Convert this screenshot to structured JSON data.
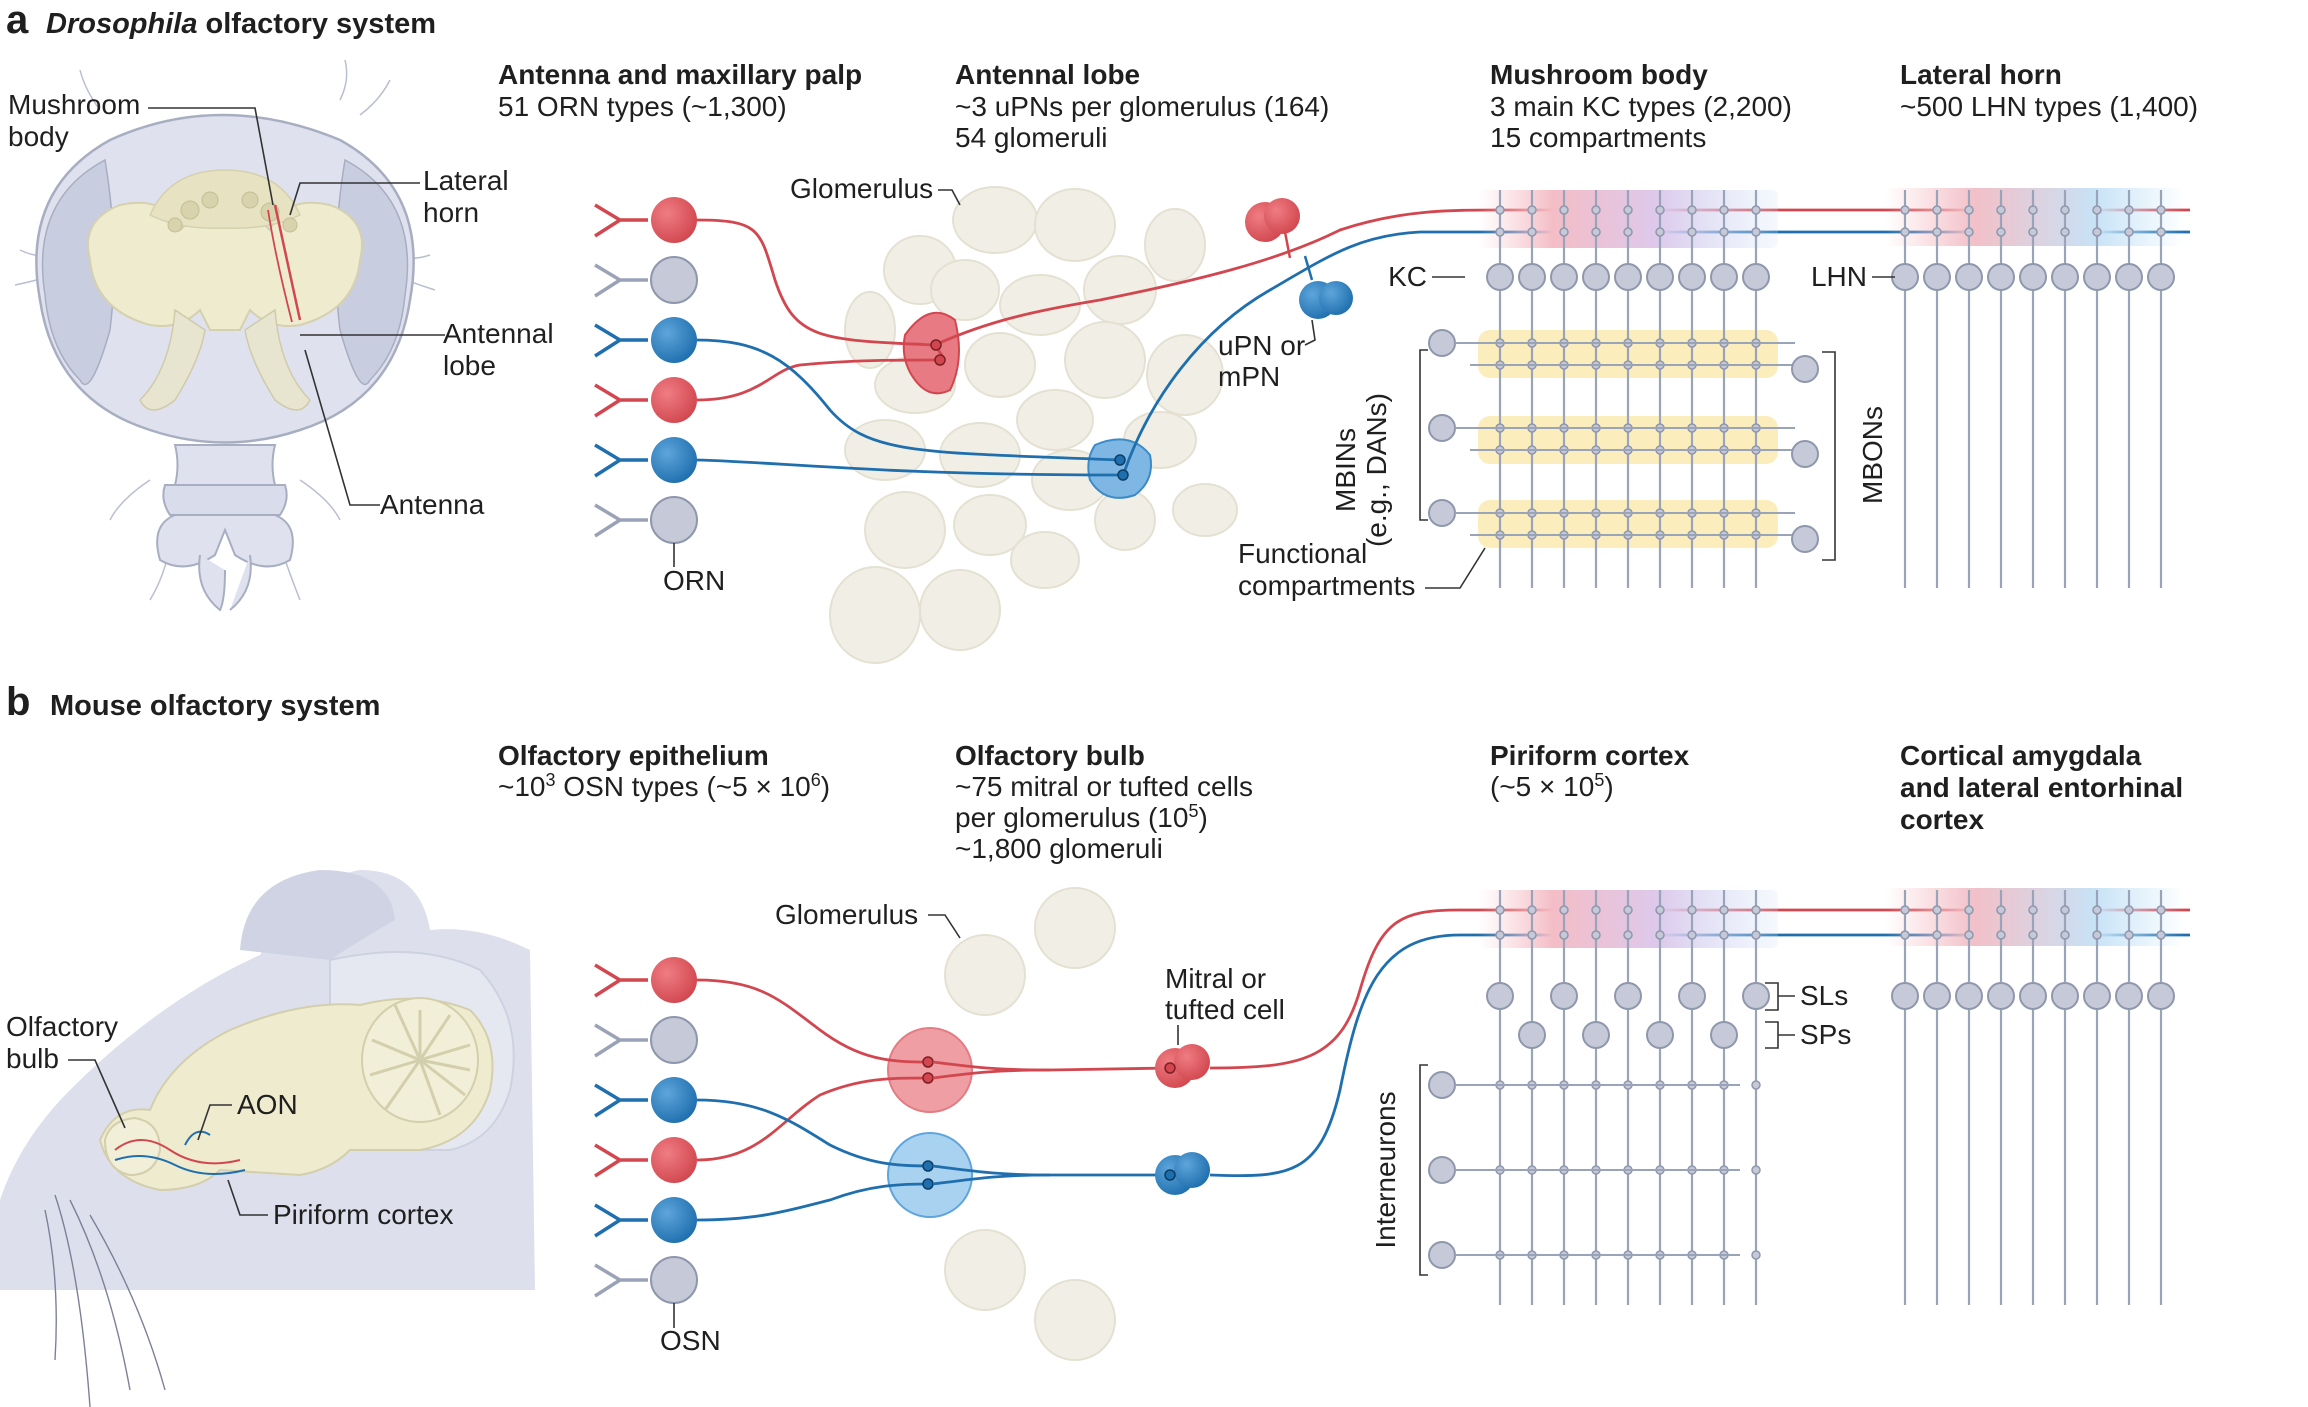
{
  "panel_a": {
    "letter": "a",
    "title_italic": "Drosophila",
    "title_rest": " olfactory system",
    "head_labels": {
      "mushroom_body_1": "Mushroom",
      "mushroom_body_2": "body",
      "lateral_horn_1": "Lateral",
      "lateral_horn_2": "horn",
      "antennal_lobe_1": "Antennal",
      "antennal_lobe_2": "lobe",
      "antenna": "Antenna"
    },
    "col1": {
      "header": "Antenna and maxillary palp",
      "line1": "51 ORN types (~1,300)"
    },
    "col2": {
      "header": "Antennal lobe",
      "line1": "~3 uPNs per glomerulus (164)",
      "line2": "54 glomeruli"
    },
    "col3": {
      "header": "Mushroom body",
      "line1": "3 main KC types (2,200)",
      "line2": "15 compartments"
    },
    "col4": {
      "header": "Lateral horn",
      "line1": "~500 LHN types (1,400)"
    },
    "labels": {
      "orn": "ORN",
      "glomerulus": "Glomerulus",
      "upn_1": "uPN or",
      "upn_2": "mPN",
      "kc": "KC",
      "lhn": "LHN",
      "mbins_1": "MBINs",
      "mbins_2": "(e.g., DANs)",
      "mbons": "MBONs",
      "functional_1": "Functional",
      "functional_2": "compartments"
    }
  },
  "panel_b": {
    "letter": "b",
    "title": "Mouse olfactory system",
    "head_labels": {
      "olfactory_bulb_1": "Olfactory",
      "olfactory_bulb_2": "bulb",
      "aon": "AON",
      "piriform": "Piriform cortex"
    },
    "col1": {
      "header": "Olfactory epithelium",
      "line1_pre": "~10",
      "line1_sup1": "3",
      "line1_mid": " OSN types (~5 × 10",
      "line1_sup2": "6",
      "line1_post": ")"
    },
    "col2": {
      "header": "Olfactory bulb",
      "line1": "~75 mitral or tufted cells",
      "line2_pre": "per glomerulus (10",
      "line2_sup": "5",
      "line2_post": ")",
      "line3": "~1,800 glomeruli"
    },
    "col3": {
      "header": "Piriform cortex",
      "line1_pre": "(~5 × 10",
      "line1_sup": "5",
      "line1_post": ")"
    },
    "col4": {
      "header_1": "Cortical amygdala",
      "header_2": "and lateral entorhinal",
      "header_3": "cortex"
    },
    "labels": {
      "osn": "OSN",
      "glomerulus": "Glomerulus",
      "mitral_1": "Mitral or",
      "mitral_2": "tufted cell",
      "sls": "SLs",
      "sps": "SPs",
      "interneurons": "Interneurons"
    }
  },
  "colors": {
    "red": "#d2474f",
    "blue": "#1f6fae",
    "node_grey": "#c6cad8",
    "compartment_yellow": "#fbeebc",
    "glomerulus_beige": "#f1efe5"
  }
}
